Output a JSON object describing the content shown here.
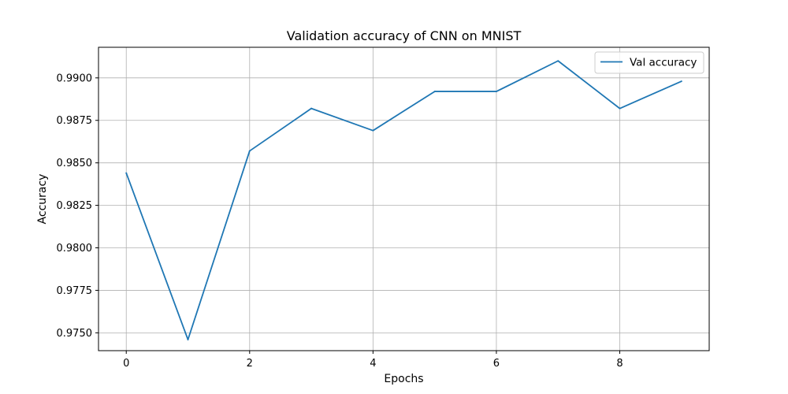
{
  "chart_data": {
    "type": "line",
    "title": "Validation accuracy of CNN on MNIST",
    "xlabel": "Epochs",
    "ylabel": "Accuracy",
    "xlim": [
      -0.45,
      9.45
    ],
    "ylim": [
      0.97395,
      0.9918
    ],
    "xticks": [
      0,
      2,
      4,
      6,
      8
    ],
    "yticks": [
      0.975,
      0.9775,
      0.98,
      0.9825,
      0.985,
      0.9875,
      0.99
    ],
    "grid": true,
    "legend_position": "top-right",
    "series": [
      {
        "name": "Val accuracy",
        "color": "#1f77b4",
        "x": [
          0,
          1,
          2,
          3,
          4,
          5,
          6,
          7,
          8,
          9
        ],
        "y": [
          0.9844,
          0.9746,
          0.9857,
          0.9882,
          0.9869,
          0.9892,
          0.9892,
          0.991,
          0.9882,
          0.9898
        ]
      }
    ]
  }
}
